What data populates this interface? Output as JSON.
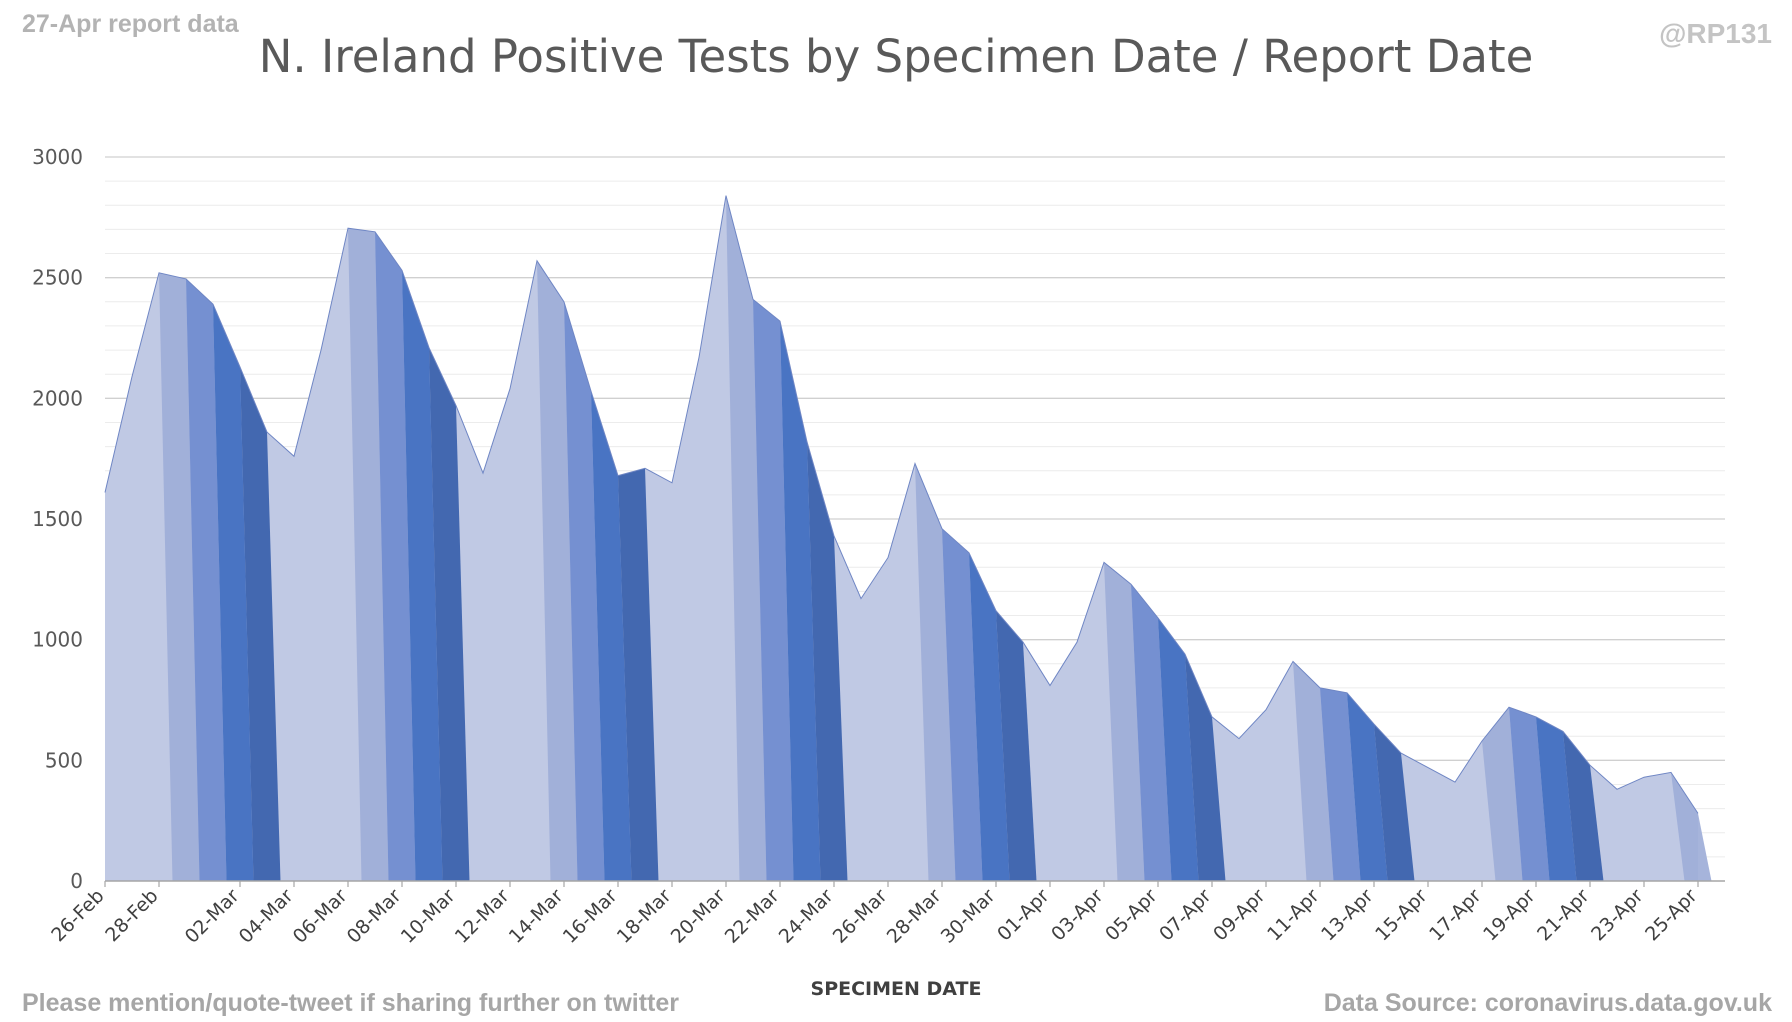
{
  "header": {
    "left_note": "27-Apr report data",
    "right_note": "@RP131",
    "title": "N. Ireland Positive Tests by Specimen Date / Report Date"
  },
  "footer": {
    "left_note": "Please mention/quote-tweet if sharing further on twitter",
    "right_note": "Data Source: coronavirus.data.gov.uk"
  },
  "colors": {
    "shades": [
      "#c0c9e4",
      "#9eaed8",
      "#6f8bcf",
      "#3f6cc0",
      "#3860ab"
    ],
    "grid": "#d9d9d9",
    "axis": "#a6a6a6"
  },
  "chart_data": {
    "type": "area",
    "title": "N. Ireland Positive Tests by Specimen Date / Report Date",
    "xlabel": "SPECIMEN DATE",
    "ylabel": "",
    "ylim": [
      0,
      3000
    ],
    "yticks": [
      0,
      500,
      1000,
      1500,
      2000,
      2500,
      3000
    ],
    "grid": true,
    "legend": "none",
    "x": [
      "26-Feb",
      "27-Feb",
      "28-Feb",
      "29-Feb",
      "01-Mar",
      "02-Mar",
      "03-Mar",
      "04-Mar",
      "05-Mar",
      "06-Mar",
      "07-Mar",
      "08-Mar",
      "09-Mar",
      "10-Mar",
      "11-Mar",
      "12-Mar",
      "13-Mar",
      "14-Mar",
      "15-Mar",
      "16-Mar",
      "17-Mar",
      "18-Mar",
      "19-Mar",
      "20-Mar",
      "21-Mar",
      "22-Mar",
      "23-Mar",
      "24-Mar",
      "25-Mar",
      "26-Mar",
      "27-Mar",
      "28-Mar",
      "29-Mar",
      "30-Mar",
      "31-Mar",
      "01-Apr",
      "02-Apr",
      "03-Apr",
      "04-Apr",
      "05-Apr",
      "06-Apr",
      "07-Apr",
      "08-Apr",
      "09-Apr",
      "10-Apr",
      "11-Apr",
      "12-Apr",
      "13-Apr",
      "14-Apr",
      "15-Apr",
      "16-Apr",
      "17-Apr",
      "18-Apr",
      "19-Apr",
      "20-Apr",
      "21-Apr",
      "22-Apr",
      "23-Apr",
      "24-Apr",
      "25-Apr",
      "26-Apr"
    ],
    "x_tick_labels": [
      "26-Feb",
      "28-Feb",
      "02-Mar",
      "04-Mar",
      "06-Mar",
      "08-Mar",
      "10-Mar",
      "12-Mar",
      "14-Mar",
      "16-Mar",
      "18-Mar",
      "20-Mar",
      "22-Mar",
      "24-Mar",
      "26-Mar",
      "28-Mar",
      "30-Mar",
      "01-Apr",
      "03-Apr",
      "05-Apr",
      "07-Apr",
      "09-Apr",
      "11-Apr",
      "13-Apr",
      "15-Apr",
      "17-Apr",
      "19-Apr",
      "21-Apr",
      "23-Apr",
      "25-Apr"
    ],
    "values": [
      1610,
      2090,
      2520,
      2495,
      2390,
      2130,
      1860,
      1760,
      2200,
      2705,
      2690,
      2530,
      2210,
      1970,
      1690,
      2040,
      2570,
      2400,
      2030,
      1680,
      1710,
      1650,
      2170,
      2840,
      2410,
      2320,
      1820,
      1430,
      1170,
      1340,
      1730,
      1460,
      1360,
      1120,
      990,
      810,
      990,
      1320,
      1230,
      1090,
      940,
      680,
      590,
      710,
      910,
      800,
      780,
      650,
      530,
      470,
      410,
      580,
      720,
      680,
      620,
      480,
      380,
      430,
      450,
      280,
      null
    ]
  }
}
